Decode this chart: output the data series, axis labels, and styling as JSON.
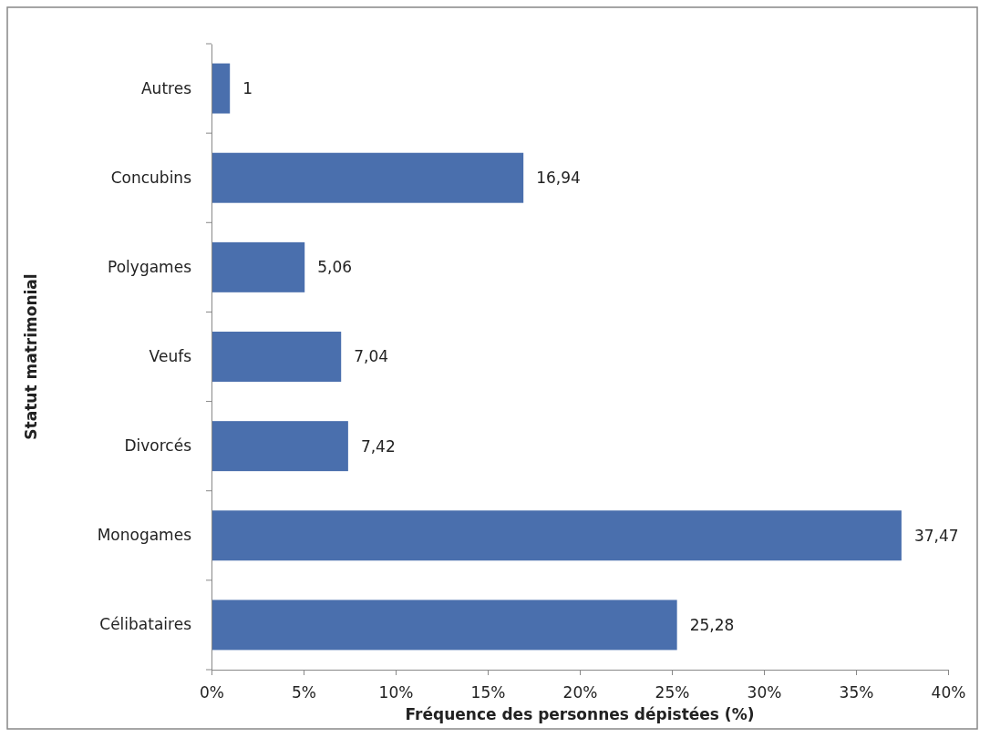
{
  "chart_data": {
    "type": "bar",
    "orientation": "horizontal",
    "xlabel": "Fréquence des personnes dépistées (%)",
    "ylabel": "Statut matrimonial",
    "categories": [
      "Autres",
      "Concubins",
      "Polygames",
      "Veufs",
      "Divorcés",
      "Monogames",
      "Célibataires"
    ],
    "values": [
      1,
      16.94,
      5.06,
      7.04,
      7.42,
      37.47,
      25.28
    ],
    "value_labels": [
      "1",
      "16,94",
      "5,06",
      "7,04",
      "7,42",
      "37,47",
      "25,28"
    ],
    "color": "#4a6fad",
    "xlim": [
      0,
      40
    ],
    "xticks": [
      {
        "value": 0,
        "label": "0%"
      },
      {
        "value": 5,
        "label": "5%"
      },
      {
        "value": 10,
        "label": "10%"
      },
      {
        "value": 15,
        "label": "15%"
      },
      {
        "value": 20,
        "label": "20%"
      },
      {
        "value": 25,
        "label": "25%"
      },
      {
        "value": 30,
        "label": "30%"
      },
      {
        "value": 35,
        "label": "35%"
      },
      {
        "value": 40,
        "label": "40%"
      }
    ],
    "grid": false
  }
}
